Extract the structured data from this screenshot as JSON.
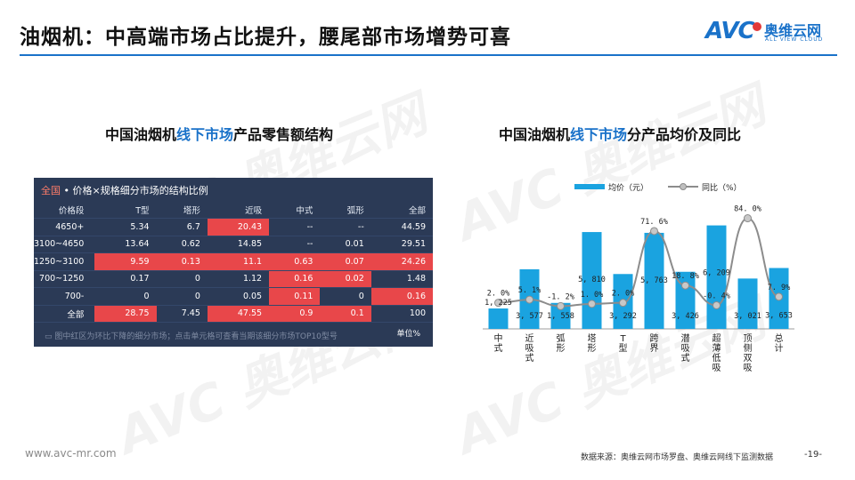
{
  "header": {
    "title": "油烟机：中高端市场占比提升，腰尾部市场增势可喜",
    "logo_text": "AVC",
    "logo_cn": "奥维云网",
    "logo_en": "ALL VIEW CLOUD"
  },
  "left_section": {
    "title_prefix": "中国油烟机",
    "title_highlight": "线下市场",
    "title_suffix": "产品零售额结构"
  },
  "right_section": {
    "title_prefix": "中国油烟机",
    "title_highlight": "线下市场",
    "title_suffix": "分产品均价及同比"
  },
  "table": {
    "scope": "全国",
    "heading": " • 价格×规格细分市场的结构比例",
    "headers": [
      "价格段",
      "T型",
      "塔形",
      "近吸",
      "中式",
      "弧形",
      "全部"
    ],
    "rows": [
      {
        "label": "4650+",
        "cells": [
          "5.34",
          "6.7",
          "20.43",
          "--",
          "--",
          "44.59"
        ],
        "red": [
          false,
          false,
          true,
          false,
          false,
          false
        ]
      },
      {
        "label": "3100~4650",
        "cells": [
          "13.64",
          "0.62",
          "14.85",
          "--",
          "0.01",
          "29.51"
        ],
        "red": [
          false,
          false,
          false,
          false,
          false,
          false
        ]
      },
      {
        "label": "1250~3100",
        "cells": [
          "9.59",
          "0.13",
          "11.1",
          "0.63",
          "0.07",
          "24.26"
        ],
        "red": [
          true,
          true,
          true,
          true,
          true,
          true
        ]
      },
      {
        "label": "700~1250",
        "cells": [
          "0.17",
          "0",
          "1.12",
          "0.16",
          "0.02",
          "1.48"
        ],
        "red": [
          false,
          false,
          false,
          true,
          true,
          false
        ]
      },
      {
        "label": "700-",
        "cells": [
          "0",
          "0",
          "0.05",
          "0.11",
          "0",
          "0.16"
        ],
        "red": [
          false,
          false,
          false,
          true,
          false,
          true
        ]
      },
      {
        "label": "全部",
        "cells": [
          "28.75",
          "7.45",
          "47.55",
          "0.9",
          "0.1",
          "100"
        ],
        "red": [
          true,
          false,
          true,
          true,
          true,
          false
        ]
      }
    ],
    "footnote": "图中红区为环比下降的细分市场；点击单元格可查看当期该细分市场TOP10型号",
    "unit": "单位%"
  },
  "chart_data": {
    "type": "bar",
    "categories": [
      "中式",
      "近吸式",
      "弧形",
      "塔形",
      "T型",
      "跨界",
      "潜吸式",
      "超薄低吸",
      "顶侧双吸",
      "总计"
    ],
    "category_lines": [
      [
        "中",
        "式"
      ],
      [
        "近",
        "吸",
        "式"
      ],
      [
        "弧",
        "形"
      ],
      [
        "塔",
        "形"
      ],
      [
        "T",
        "型"
      ],
      [
        "跨",
        "界"
      ],
      [
        "潜",
        "吸",
        "式"
      ],
      [
        "超",
        "薄",
        "低",
        "吸"
      ],
      [
        "顶",
        "侧",
        "双",
        "吸"
      ],
      [
        "总",
        "计"
      ]
    ],
    "series": [
      {
        "name": "均价（元）",
        "type": "bar",
        "color": "#1aa3e0",
        "values": [
          1225,
          3577,
          1558,
          5810,
          3292,
          5763,
          3426,
          6209,
          3021,
          3653
        ],
        "labels": [
          "1, 225",
          "3, 577",
          "1, 558",
          "5, 810",
          "3, 292",
          "5, 763",
          "3, 426",
          "6, 209",
          "3, 021",
          "3, 653"
        ]
      },
      {
        "name": "同比（%）",
        "type": "line",
        "color": "#8c8c8c",
        "values": [
          2.0,
          5.1,
          -1.2,
          1.0,
          2.0,
          71.6,
          18.8,
          -0.4,
          84.0,
          7.9
        ],
        "labels": [
          "2. 0%",
          "5. 1%",
          "-1. 2%",
          "1. 0%",
          "2. 0%",
          "71. 6%",
          "18. 8%",
          "-0. 4%",
          "84. 0%",
          "7. 9%"
        ]
      }
    ],
    "legend_position": "top",
    "grid": false
  },
  "footer": {
    "url": "www.avc-mr.com",
    "source": "数据来源：奥维云网市场罗盘、奥维云网线下监测数据",
    "page": "-19-"
  },
  "watermark_text": "AVC 奥维云网"
}
